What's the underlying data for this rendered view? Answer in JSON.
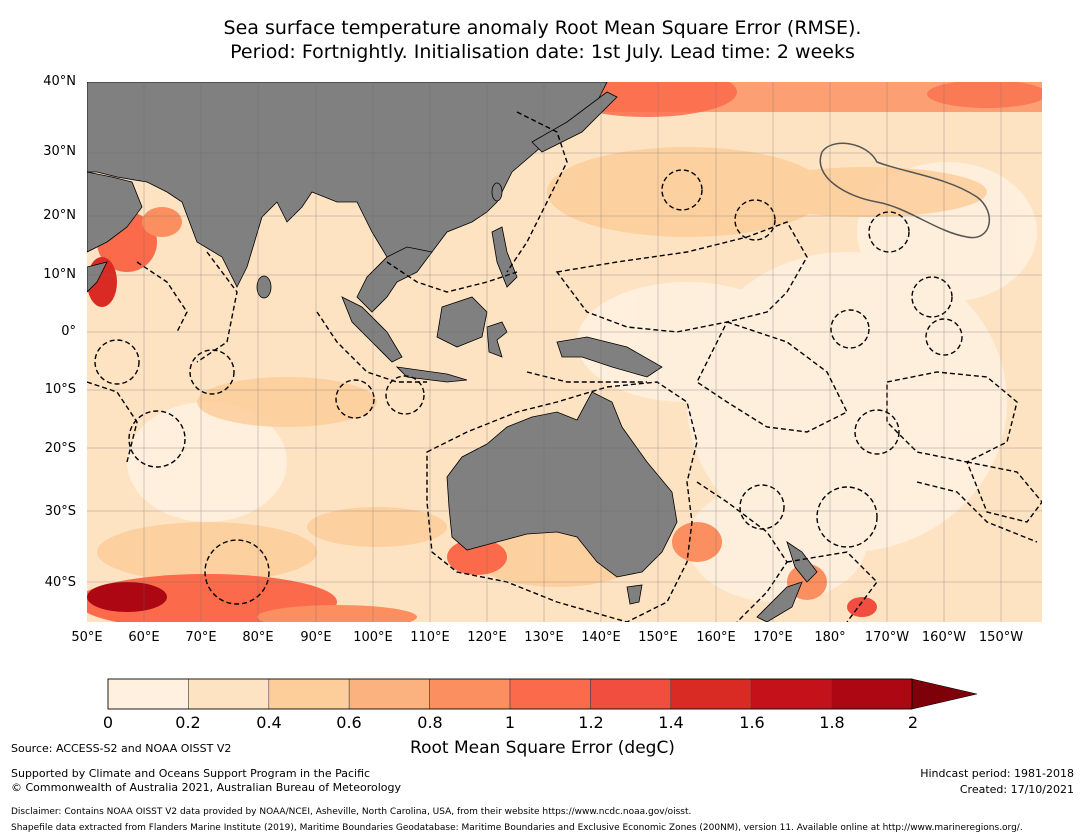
{
  "title_line1": "Sea surface temperature anomaly Root Mean Square Error (RMSE).",
  "title_line2": "Period: Fortnightly. Initialisation date: 1st July. Lead time: 2 weeks",
  "map": {
    "lat_labels": [
      "40°N",
      "30°N",
      "20°N",
      "10°N",
      "0°",
      "10°S",
      "20°S",
      "30°S",
      "40°S"
    ],
    "lon_labels": [
      "50°E",
      "60°E",
      "70°E",
      "80°E",
      "90°E",
      "100°E",
      "110°E",
      "120°E",
      "130°E",
      "140°E",
      "150°E",
      "160°E",
      "170°E",
      "180°",
      "170°W",
      "160°W",
      "150°W"
    ],
    "land_color": "#808080",
    "ocean_base_color": "#fee3c3"
  },
  "colorbar": {
    "ticks": [
      "0",
      "0.2",
      "0.4",
      "0.6",
      "0.8",
      "1",
      "1.2",
      "1.4",
      "1.6",
      "1.8",
      "2"
    ],
    "colors": [
      "#fff0df",
      "#fee3c3",
      "#fdcd9a",
      "#fcb27e",
      "#fb8f5f",
      "#fb6a4a",
      "#f24e3f",
      "#d92b24",
      "#c5121a",
      "#ac0712",
      "#7e0008"
    ],
    "label": "Root Mean Square Error (degC)"
  },
  "footer": {
    "source": "Source: ACCESS-S2 and NOAA OISST V2",
    "support_line1": "Supported by Climate and Oceans Support Program in the Pacific",
    "support_line2": "© Commonwealth of Australia 2021, Australian Bureau of Meteorology",
    "hindcast": "Hindcast period: 1981-2018",
    "created": "Created: 17/10/2021",
    "disclaimer": "Disclaimer: Contains NOAA OISST V2 data provided by NOAA/NCEI, Asheville, North Carolina, USA, from their website https://www.ncdc.noaa.gov/oisst.",
    "shapefile": "Shapefile data extracted from Flanders Marine Institute (2019), Maritime Boundaries Geodatabase: Maritime Boundaries and Exclusive Economic Zones (200NM), version 11. Available online at http://www.marineregions.org/."
  }
}
